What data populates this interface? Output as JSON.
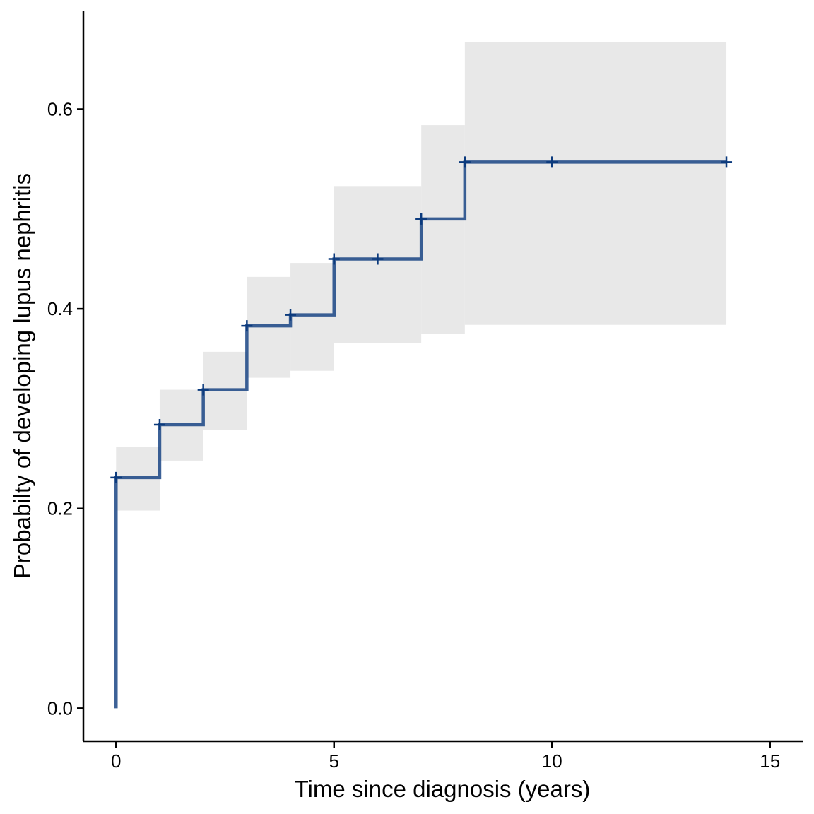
{
  "chart_data": {
    "type": "line",
    "subtype": "step-cumulative-incidence",
    "title": "",
    "xlabel": "Time since diagnosis (years)",
    "ylabel": "Probabilty of developing lupus nephritis",
    "xlim": [
      -0.75,
      15.75
    ],
    "ylim": [
      -0.033,
      0.698
    ],
    "x_ticks": [
      0,
      5,
      10,
      15
    ],
    "x_tick_labels": [
      "0",
      "5",
      "10",
      "15"
    ],
    "y_ticks": [
      0.0,
      0.2,
      0.4,
      0.6
    ],
    "y_tick_labels": [
      "0.0",
      "0.2",
      "0.4",
      "0.6"
    ],
    "grid": false,
    "legend": "none",
    "colors": {
      "line": "#0b3a7d",
      "band": "#e8e8e8",
      "axis": "#000000"
    },
    "series": [
      {
        "steps": [
          {
            "x": 0,
            "y": 0.0
          },
          {
            "x": 0,
            "y": 0.231
          },
          {
            "x": 1,
            "y": 0.284
          },
          {
            "x": 2,
            "y": 0.319
          },
          {
            "x": 3,
            "y": 0.383
          },
          {
            "x": 4,
            "y": 0.394
          },
          {
            "x": 5,
            "y": 0.45
          },
          {
            "x": 7,
            "y": 0.49
          },
          {
            "x": 8,
            "y": 0.547
          }
        ],
        "end_x": 14,
        "confidence_band": [
          {
            "x0": 0,
            "x1": 1,
            "lower": 0.198,
            "upper": 0.262
          },
          {
            "x0": 1,
            "x1": 2,
            "lower": 0.248,
            "upper": 0.319
          },
          {
            "x0": 2,
            "x1": 3,
            "lower": 0.279,
            "upper": 0.357
          },
          {
            "x0": 3,
            "x1": 4,
            "lower": 0.331,
            "upper": 0.432
          },
          {
            "x0": 4,
            "x1": 5,
            "lower": 0.338,
            "upper": 0.446
          },
          {
            "x0": 5,
            "x1": 7,
            "lower": 0.366,
            "upper": 0.523
          },
          {
            "x0": 7,
            "x1": 8,
            "lower": 0.375,
            "upper": 0.584
          },
          {
            "x0": 8,
            "x1": 14,
            "lower": 0.384,
            "upper": 0.667
          }
        ],
        "censor_marks": [
          {
            "x": 0,
            "y": 0.231
          },
          {
            "x": 1,
            "y": 0.284
          },
          {
            "x": 2,
            "y": 0.319
          },
          {
            "x": 3,
            "y": 0.383
          },
          {
            "x": 4,
            "y": 0.394
          },
          {
            "x": 5,
            "y": 0.45
          },
          {
            "x": 6,
            "y": 0.45
          },
          {
            "x": 7,
            "y": 0.49
          },
          {
            "x": 8,
            "y": 0.547
          },
          {
            "x": 10,
            "y": 0.547
          },
          {
            "x": 14,
            "y": 0.547
          }
        ]
      }
    ]
  }
}
